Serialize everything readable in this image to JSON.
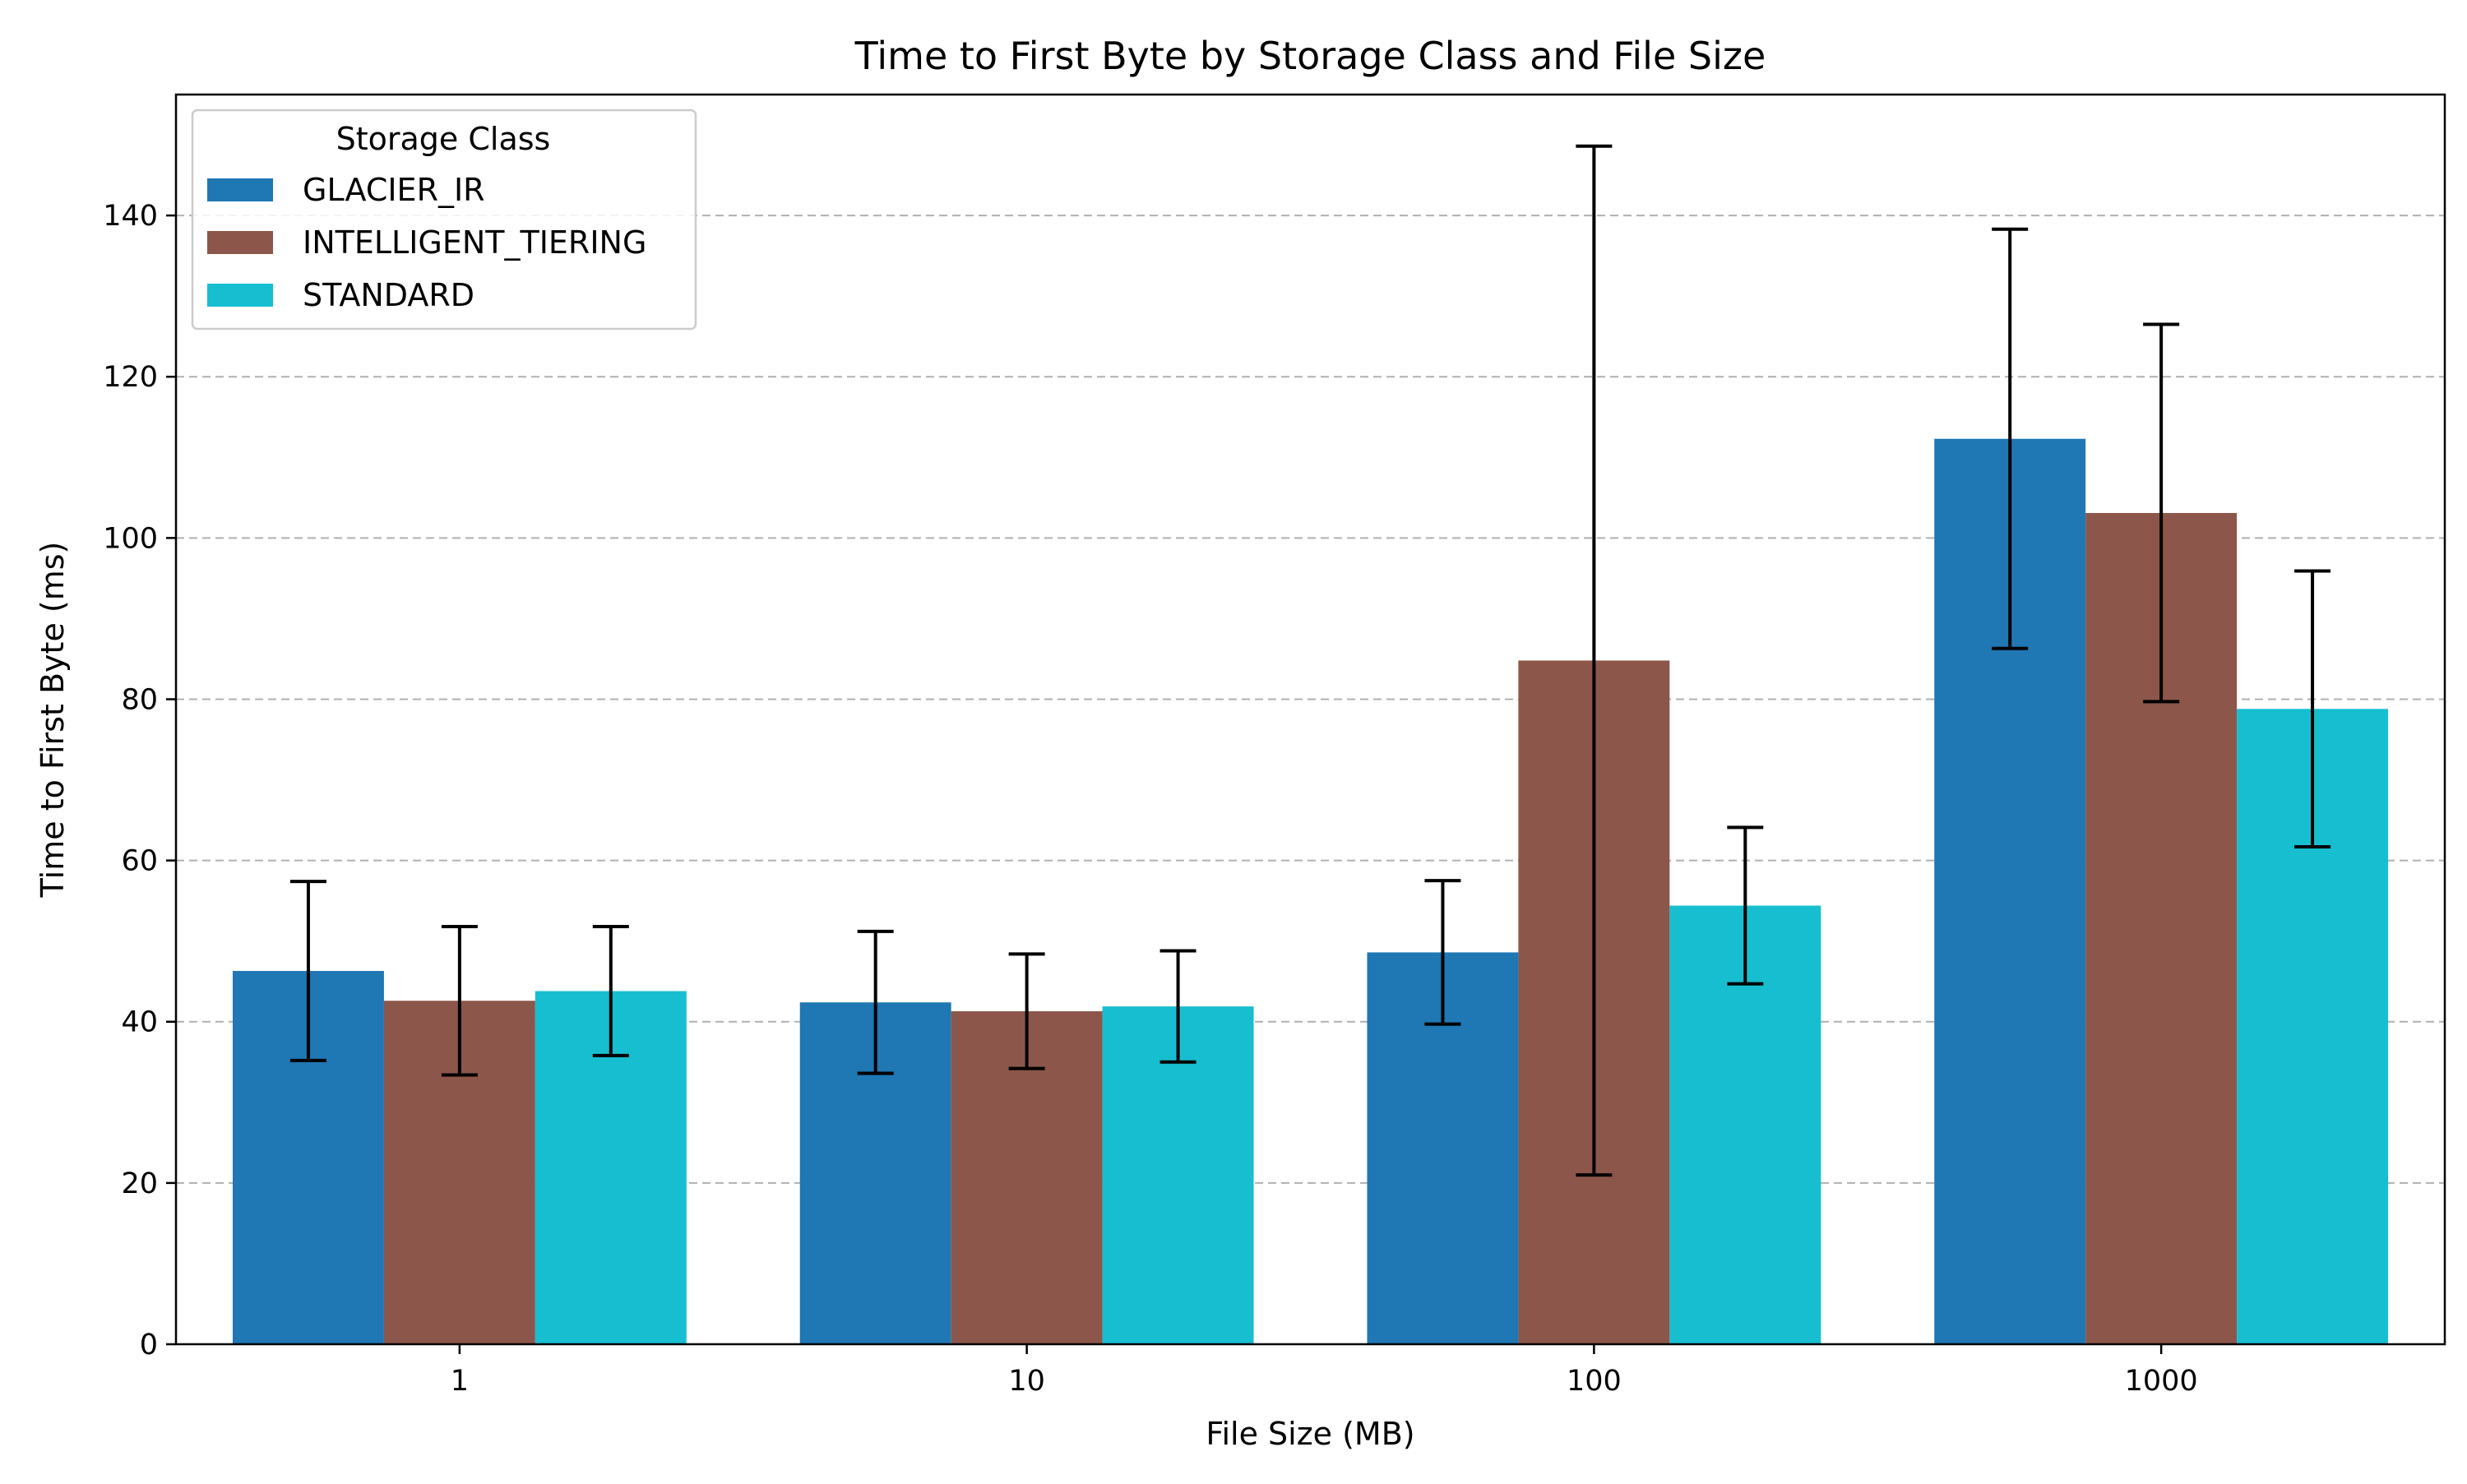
{
  "chart_data": {
    "type": "bar",
    "title": "Time to First Byte by Storage Class and File Size",
    "xlabel": "File Size (MB)",
    "ylabel": "Time to First Byte (ms)",
    "categories": [
      "1",
      "10",
      "100",
      "1000"
    ],
    "ylim": [
      0,
      155
    ],
    "yticks": [
      0,
      20,
      40,
      60,
      80,
      100,
      120,
      140
    ],
    "grid": "y-dashed",
    "legend": {
      "title": "Storage Class",
      "placement": "top-left"
    },
    "series": [
      {
        "name": "GLACIER_IR",
        "color": "#1f77b4",
        "values": [
          46.3,
          42.4,
          48.6,
          112.3
        ],
        "errors": [
          11.1,
          8.8,
          8.9,
          26.0
        ]
      },
      {
        "name": "INTELLIGENT_TIERING",
        "color": "#8c564b",
        "values": [
          42.6,
          41.3,
          84.8,
          103.1
        ],
        "errors": [
          9.2,
          7.1,
          63.8,
          23.4
        ]
      },
      {
        "name": "STANDARD",
        "color": "#17becf",
        "values": [
          43.8,
          41.9,
          54.4,
          78.8
        ],
        "errors": [
          8.0,
          6.9,
          9.7,
          17.1
        ]
      }
    ]
  }
}
